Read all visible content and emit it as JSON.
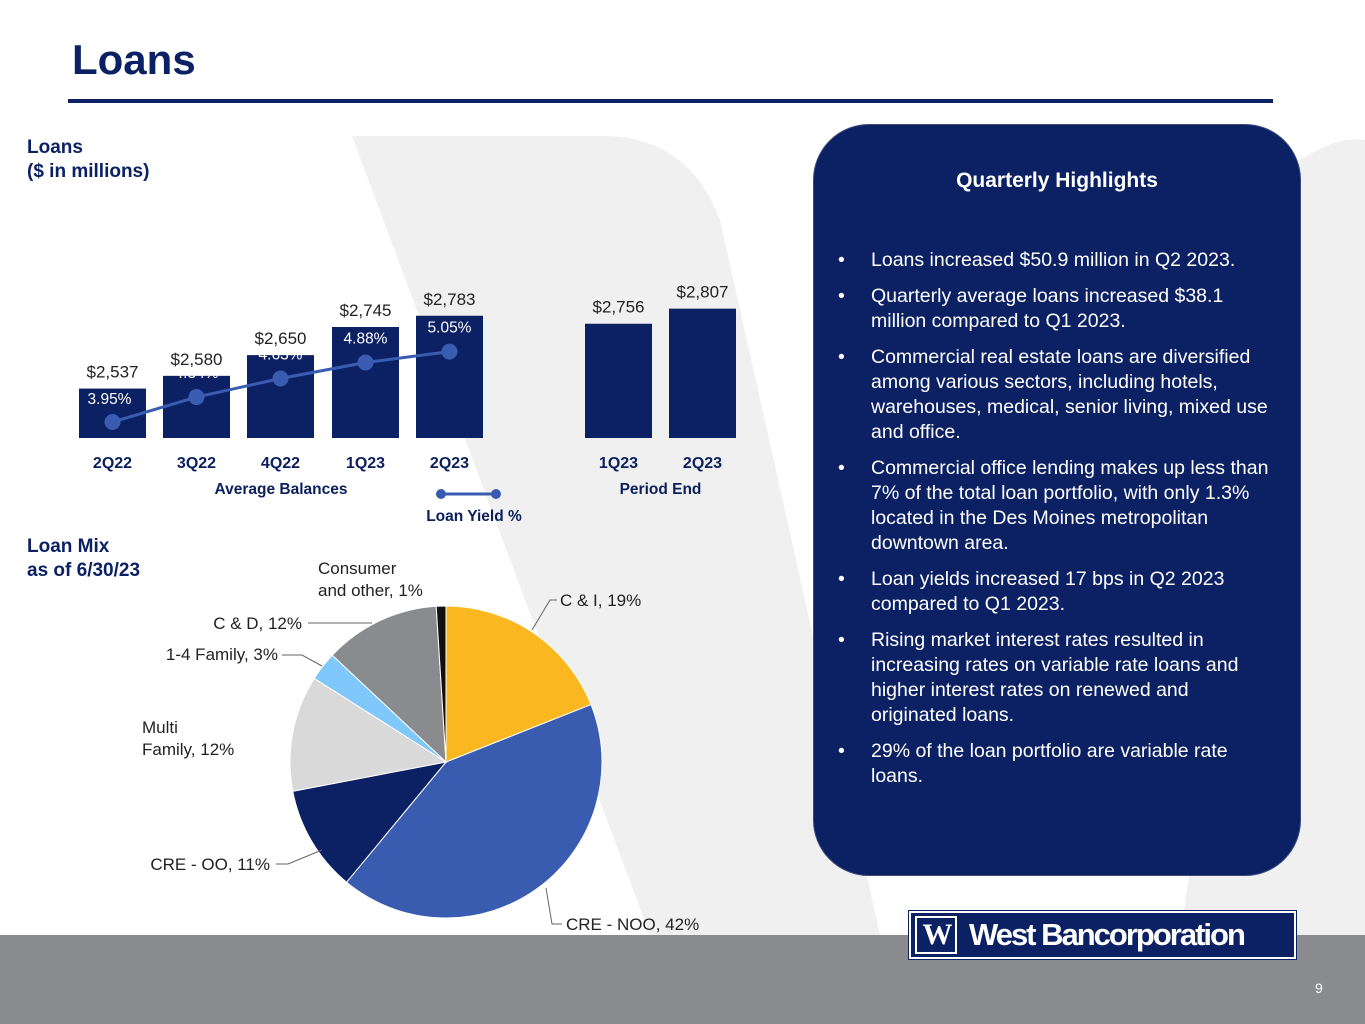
{
  "title": "Loans",
  "labels": {
    "loans_section": [
      "Loans",
      "($ in millions)"
    ],
    "loan_mix_section": [
      "Loan Mix",
      "as of 6/30/23"
    ]
  },
  "colors": {
    "navy": "#0b2163",
    "line_blue": "#3a5cb0",
    "footer_gray": "#8a8b8e"
  },
  "chart_data": [
    {
      "type": "bar",
      "groups": [
        {
          "name": "Average Balances",
          "categories": [
            "2Q22",
            "3Q22",
            "4Q22",
            "1Q23",
            "2Q23"
          ],
          "values": [
            2537,
            2580,
            2650,
            2745,
            2783
          ],
          "value_labels": [
            "$2,537",
            "$2,580",
            "$2,650",
            "$2,745",
            "$2,783"
          ]
        },
        {
          "name": "Period End",
          "categories": [
            "1Q23",
            "2Q23"
          ],
          "values": [
            2756,
            2807
          ],
          "value_labels": [
            "$2,756",
            "$2,807"
          ]
        }
      ],
      "line_series": {
        "name": "Loan Yield %",
        "categories": [
          "2Q22",
          "3Q22",
          "4Q22",
          "1Q23",
          "2Q23"
        ],
        "values": [
          3.95,
          4.34,
          4.63,
          4.88,
          5.05
        ],
        "value_labels": [
          "3.95%",
          "4.34%",
          "4.63%",
          "4.88%",
          "5.05%"
        ]
      },
      "legend": "bottom-center",
      "grid": false
    },
    {
      "type": "pie",
      "slices": [
        {
          "label": "C & I, 19%",
          "value": 19,
          "color": "#fbb71f"
        },
        {
          "label": "CRE - NOO, 42%",
          "value": 42,
          "color": "#3a5cb0"
        },
        {
          "label": "CRE - OO, 11%",
          "value": 11,
          "color": "#0b2163"
        },
        {
          "label": "Multi Family, 12%",
          "label_lines": [
            "Multi",
            "Family, 12%"
          ],
          "value": 12,
          "color": "#d9d9d9"
        },
        {
          "label": "1-4 Family, 3%",
          "value": 3,
          "color": "#7ec8fb"
        },
        {
          "label": "C & D, 12%",
          "value": 12,
          "color": "#8a8b8e"
        },
        {
          "label": "Consumer and other, 1%",
          "label_lines": [
            "Consumer",
            "and other, 1%"
          ],
          "value": 1,
          "color": "#111111"
        }
      ]
    }
  ],
  "highlights": {
    "title": "Quarterly Highlights",
    "bullet": "•",
    "items": [
      "Loans increased $50.9 million in Q2 2023.",
      "Quarterly average loans increased $38.1 million compared to Q1 2023.",
      "Commercial real estate loans are diversified among various sectors, including hotels, warehouses, medical, senior living, mixed use and office.",
      "Commercial office lending makes up less than 7% of the total loan portfolio, with only 1.3% located in the Des Moines metropolitan downtown area.",
      "Loan yields increased 17 bps in Q2 2023 compared to Q1 2023.",
      "Rising market interest rates resulted in increasing rates on variable rate loans and higher interest rates on renewed and originated loans.",
      "29% of the loan portfolio are variable rate loans."
    ]
  },
  "logo": {
    "mark": "W",
    "text": "West Bancorporation"
  },
  "page_number": "9"
}
